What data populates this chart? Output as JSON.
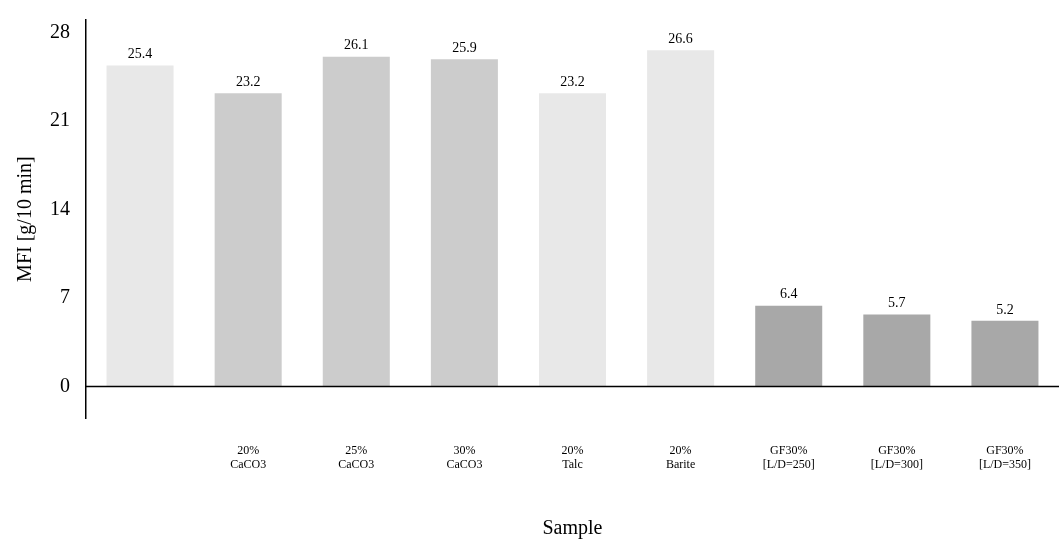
{
  "chart_data": {
    "type": "bar",
    "xlabel": "Sample",
    "ylabel": "MFI [g/10 min]",
    "categories": [
      null,
      "20%\nCaCO3",
      "25%\nCaCO3",
      "30%\nCaCO3",
      "20%\nTalc",
      "20%\nBarite",
      "GF30%\n[L/D=250]",
      "GF30%\n[L/D=300]",
      "GF30%\n[L/D=350]"
    ],
    "values": [
      25.4,
      23.2,
      26.1,
      25.9,
      23.2,
      26.6,
      6.4,
      5.7,
      5.2
    ],
    "colors": [
      "#e8e8e8",
      "#cccccc",
      "#cccccc",
      "#cccccc",
      "#e8e8e8",
      "#e8e8e8",
      "#a8a8a8",
      "#a8a8a8",
      "#a8a8a8"
    ],
    "ref_lines": [
      {
        "axis": "y",
        "value": 0,
        "color": "#000000"
      }
    ],
    "ylim": [
      -2.5,
      29
    ],
    "yticks": [
      0,
      7,
      14,
      21,
      28
    ],
    "grid": false,
    "legend": false,
    "data_labels": true
  }
}
